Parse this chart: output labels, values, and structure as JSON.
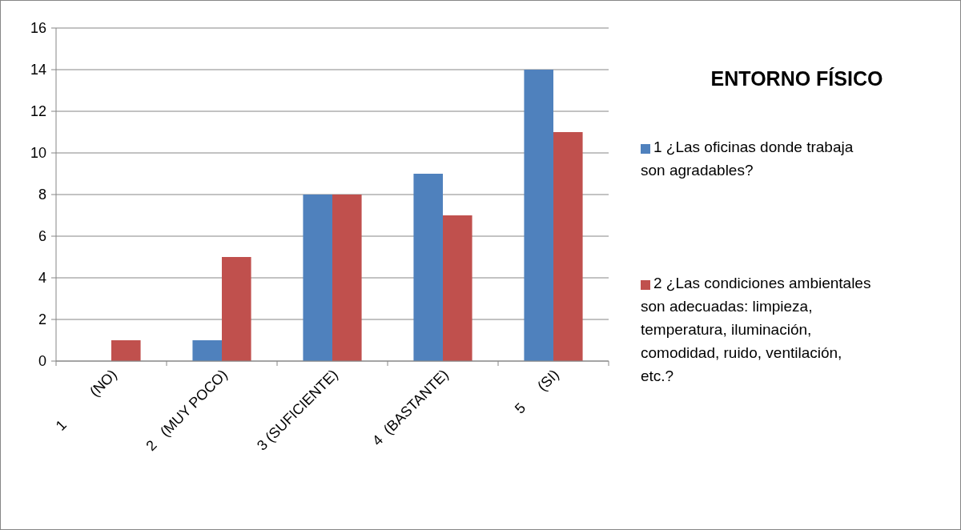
{
  "chart_data": {
    "type": "bar",
    "title": "ENTORNO FÍSICO",
    "categories": [
      "1          (NO)",
      "2   (MUY POCO)",
      "3 (SUFICIENTE)",
      "4  (BASTANTE)",
      "5      (SI)"
    ],
    "series": [
      {
        "name": "1 ¿Las oficinas donde trabaja son agradables?",
        "color": "#4f81bd",
        "values": [
          0,
          1,
          8,
          9,
          14
        ]
      },
      {
        "name": "2 ¿Las condiciones ambientales son adecuadas: limpieza, temperatura, iluminación, comodidad, ruido, ventilación, etc.?",
        "color": "#c0504d",
        "values": [
          1,
          5,
          8,
          7,
          11
        ]
      }
    ],
    "ylim": [
      0,
      16
    ],
    "yticks": [
      0,
      2,
      4,
      6,
      8,
      10,
      12,
      14,
      16
    ],
    "grid": "y",
    "legend": "right"
  }
}
